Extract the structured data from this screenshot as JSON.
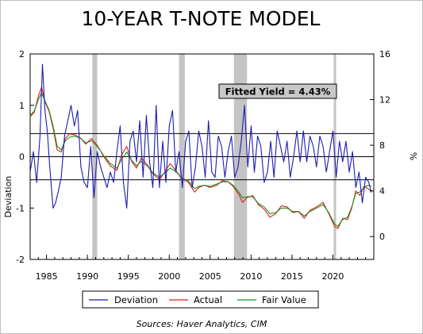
{
  "chart_data": {
    "type": "line",
    "title": "10-YEAR T-NOTE MODEL",
    "source": "Sources:  Haver Analytics, CIM",
    "annotation": "Fitted Yield = 4.43%",
    "left_axis": {
      "label": "Deviation",
      "range": [
        -2,
        2
      ],
      "ticks": [
        2,
        1,
        0,
        -1,
        -2
      ],
      "tick_labels": [
        "2",
        "1",
        "0",
        "-1",
        "-2"
      ]
    },
    "right_axis": {
      "label": "%",
      "range": [
        -2,
        16
      ],
      "ticks": [
        16,
        12,
        8,
        4,
        0
      ],
      "tick_labels": [
        "16",
        "12",
        "8",
        "4",
        "0"
      ]
    },
    "x_axis": {
      "range": [
        1983,
        2025
      ],
      "ticks": [
        1985,
        1990,
        1995,
        2000,
        2005,
        2010,
        2015,
        2020
      ],
      "tick_labels": [
        "1985",
        "1990",
        "1995",
        "2000",
        "2005",
        "2010",
        "2015",
        "2020"
      ]
    },
    "reference_lines_deviation": [
      0.45,
      0,
      -0.45
    ],
    "recessions": [
      [
        1990.6,
        1991.2
      ],
      [
        2001.2,
        2001.9
      ],
      [
        2007.9,
        2009.5
      ],
      [
        2020.1,
        2020.4
      ]
    ],
    "legend": {
      "placement": "bottom",
      "entries": [
        "Deviation",
        "Actual",
        "Fair Value"
      ]
    },
    "colors": {
      "deviation": "#1c1cb4",
      "actual": "#e01e1e",
      "fair_value": "#1e8c1e",
      "recession": "#c4c4c4",
      "reference": "#000000"
    },
    "series": [
      {
        "name": "Actual",
        "axis": "right",
        "x": [
          1983.0,
          1983.5,
          1984.0,
          1984.4,
          1984.8,
          1985.3,
          1985.8,
          1986.3,
          1986.8,
          1987.3,
          1987.8,
          1988.5,
          1989.2,
          1989.8,
          1990.5,
          1991.2,
          1992.0,
          1992.8,
          1993.6,
          1994.2,
          1994.8,
          1995.4,
          1996.0,
          1996.6,
          1997.3,
          1998.0,
          1998.8,
          1999.5,
          2000.1,
          2000.8,
          2001.6,
          2002.3,
          2003.1,
          2003.6,
          2004.3,
          2005.0,
          2005.8,
          2006.5,
          2007.2,
          2007.8,
          2008.5,
          2008.95,
          2009.5,
          2010.2,
          2010.9,
          2011.6,
          2012.3,
          2013.0,
          2013.7,
          2014.4,
          2015.1,
          2015.8,
          2016.5,
          2017.2,
          2018.0,
          2018.8,
          2019.5,
          2020.2,
          2020.6,
          2021.2,
          2021.8,
          2022.3,
          2022.8,
          2023.3,
          2023.8,
          2024.3,
          2024.7
        ],
        "values": [
          10.5,
          10.9,
          12.3,
          13.1,
          11.8,
          11.0,
          9.5,
          7.6,
          7.4,
          8.6,
          9.0,
          8.9,
          8.6,
          8.1,
          8.6,
          8.0,
          7.0,
          6.2,
          5.8,
          7.2,
          7.9,
          6.6,
          6.0,
          6.9,
          6.3,
          5.5,
          5.0,
          5.7,
          6.4,
          5.8,
          5.0,
          4.8,
          3.9,
          4.3,
          4.5,
          4.3,
          4.5,
          4.9,
          4.8,
          4.4,
          3.7,
          3.0,
          3.4,
          3.6,
          2.8,
          2.4,
          1.7,
          2.0,
          2.7,
          2.6,
          2.1,
          2.2,
          1.6,
          2.3,
          2.6,
          3.0,
          2.0,
          0.9,
          0.7,
          1.6,
          1.5,
          2.5,
          4.0,
          3.6,
          4.4,
          4.2,
          4.0
        ]
      },
      {
        "name": "Fair Value",
        "axis": "right",
        "x": [
          1983.0,
          1983.5,
          1984.0,
          1984.4,
          1984.8,
          1985.3,
          1985.8,
          1986.3,
          1986.8,
          1987.3,
          1987.8,
          1988.5,
          1989.2,
          1989.8,
          1990.5,
          1991.2,
          1992.0,
          1992.8,
          1993.6,
          1994.2,
          1994.8,
          1995.4,
          1996.0,
          1996.6,
          1997.3,
          1998.0,
          1998.8,
          1999.5,
          2000.1,
          2000.8,
          2001.6,
          2002.3,
          2003.1,
          2003.6,
          2004.3,
          2005.0,
          2005.8,
          2006.5,
          2007.2,
          2007.8,
          2008.5,
          2008.95,
          2009.5,
          2010.2,
          2010.9,
          2011.6,
          2012.3,
          2013.0,
          2013.7,
          2014.4,
          2015.1,
          2015.8,
          2016.5,
          2017.2,
          2018.0,
          2018.8,
          2019.5,
          2020.2,
          2020.6,
          2021.2,
          2021.8,
          2022.3,
          2022.8,
          2023.3,
          2023.8,
          2024.3,
          2024.7
        ],
        "values": [
          10.6,
          11.0,
          12.0,
          12.6,
          11.9,
          11.1,
          9.7,
          7.9,
          7.6,
          8.4,
          8.7,
          8.8,
          8.6,
          8.2,
          8.4,
          7.9,
          7.1,
          6.4,
          6.0,
          6.8,
          7.4,
          6.7,
          6.2,
          6.6,
          6.2,
          5.6,
          5.2,
          5.6,
          6.0,
          5.7,
          5.1,
          4.9,
          4.2,
          4.4,
          4.5,
          4.4,
          4.6,
          4.8,
          4.8,
          4.5,
          3.9,
          3.4,
          3.5,
          3.5,
          2.9,
          2.6,
          2.0,
          2.1,
          2.5,
          2.5,
          2.2,
          2.2,
          1.8,
          2.2,
          2.5,
          2.8,
          2.1,
          1.1,
          0.9,
          1.5,
          1.7,
          2.6,
          3.8,
          3.9,
          4.3,
          4.5,
          4.4
        ]
      },
      {
        "name": "Deviation",
        "axis": "left",
        "x": [
          1983.0,
          1983.4,
          1983.8,
          1984.2,
          1984.5,
          1984.8,
          1985.1,
          1985.4,
          1985.8,
          1986.1,
          1986.4,
          1986.8,
          1987.2,
          1987.6,
          1988.0,
          1988.4,
          1988.8,
          1989.2,
          1989.6,
          1990.0,
          1990.4,
          1990.8,
          1991.2,
          1991.6,
          1992.0,
          1992.4,
          1992.8,
          1993.2,
          1993.6,
          1994.0,
          1994.4,
          1994.8,
          1995.2,
          1995.6,
          1996.0,
          1996.4,
          1996.8,
          1997.2,
          1997.6,
          1998.0,
          1998.4,
          1998.8,
          1999.2,
          1999.6,
          2000.0,
          2000.4,
          2000.8,
          2001.2,
          2001.6,
          2002.0,
          2002.4,
          2002.8,
          2003.2,
          2003.6,
          2004.0,
          2004.4,
          2004.8,
          2005.2,
          2005.6,
          2006.0,
          2006.4,
          2006.8,
          2007.2,
          2007.6,
          2008.0,
          2008.4,
          2008.8,
          2009.2,
          2009.6,
          2010.0,
          2010.4,
          2010.8,
          2011.2,
          2011.6,
          2012.0,
          2012.4,
          2012.8,
          2013.2,
          2013.6,
          2014.0,
          2014.4,
          2014.8,
          2015.2,
          2015.6,
          2016.0,
          2016.4,
          2016.8,
          2017.2,
          2017.6,
          2018.0,
          2018.4,
          2018.8,
          2019.2,
          2019.6,
          2020.0,
          2020.4,
          2020.8,
          2021.2,
          2021.6,
          2022.0,
          2022.4,
          2022.8,
          2023.2,
          2023.6,
          2024.0,
          2024.4,
          2024.7
        ],
        "values": [
          -0.3,
          0.1,
          -0.5,
          0.4,
          1.8,
          0.9,
          0.5,
          -0.2,
          -1.0,
          -0.9,
          -0.7,
          -0.4,
          0.4,
          0.7,
          1.0,
          0.6,
          0.9,
          -0.2,
          -0.5,
          -0.6,
          0.2,
          -0.8,
          0.1,
          -0.2,
          -0.4,
          -0.6,
          -0.3,
          -0.5,
          0.1,
          0.6,
          -0.5,
          -1.0,
          0.3,
          0.5,
          -0.1,
          0.7,
          -0.4,
          0.8,
          -0.1,
          -0.6,
          1.0,
          -0.6,
          0.3,
          -0.5,
          0.6,
          0.9,
          -0.3,
          0.1,
          -0.6,
          0.3,
          0.5,
          -0.6,
          -0.2,
          0.5,
          0.2,
          -0.4,
          0.7,
          -0.3,
          -0.4,
          0.4,
          0.2,
          -0.4,
          0.1,
          0.4,
          -0.4,
          -0.2,
          0.3,
          1.0,
          -0.2,
          0.6,
          -0.3,
          0.4,
          0.2,
          -0.5,
          -0.3,
          0.3,
          -0.4,
          0.5,
          0.2,
          -0.1,
          0.3,
          -0.4,
          0.0,
          0.5,
          -0.1,
          0.5,
          -0.1,
          0.4,
          0.2,
          -0.2,
          0.4,
          0.2,
          -0.3,
          0.1,
          0.5,
          -0.4,
          0.3,
          -0.1,
          0.3,
          -0.3,
          0.1,
          -0.6,
          -0.3,
          -0.9,
          -0.4,
          -0.5,
          -0.7
        ]
      }
    ]
  }
}
